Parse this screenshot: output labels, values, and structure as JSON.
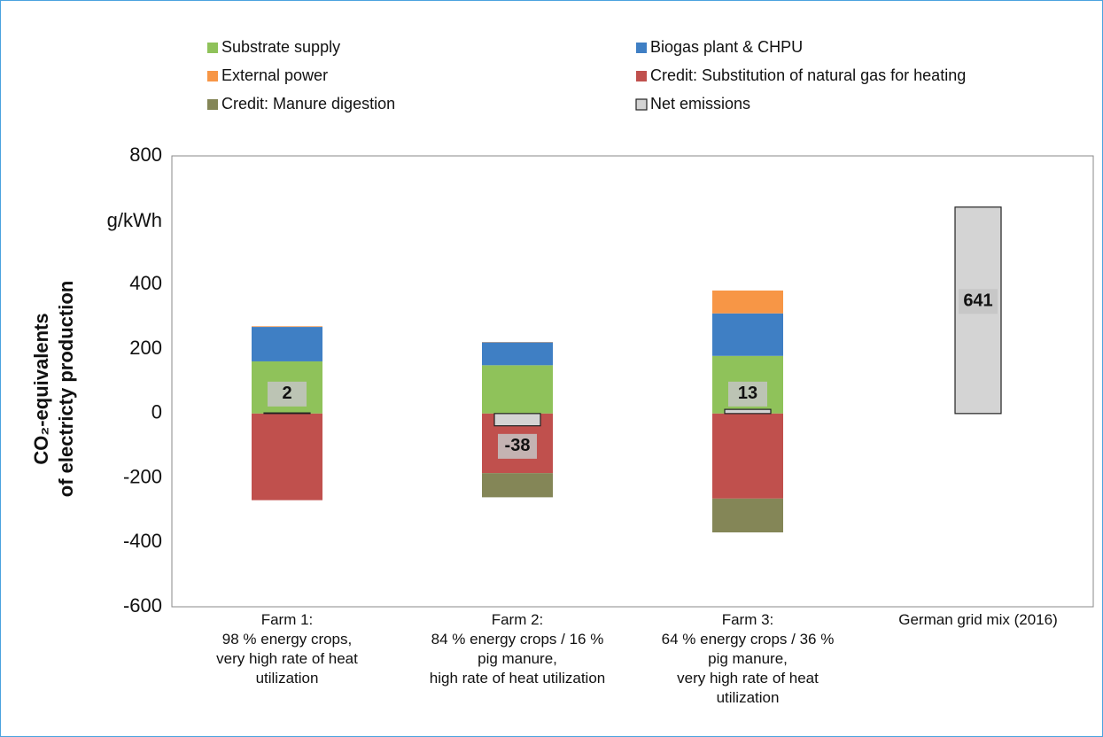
{
  "chart_data": {
    "type": "stacked-bar",
    "y_label": "CO₂-equivalents\nof electricty production",
    "unit": "g/kWh",
    "categories": [
      "Farm 1:\n98 % energy crops,\nvery high rate of heat\nutilization",
      "Farm 2:\n84 % energy crops / 16 %\npig manure,\nhigh rate of heat utilization",
      "Farm 3:\n64 % energy crops / 36 %\npig manure,\nvery high rate of heat\nutilization",
      "German grid mix (2016)"
    ],
    "series": [
      {
        "name": "Substrate supply",
        "color": "#8fc25a",
        "values": [
          162,
          150,
          179,
          null
        ]
      },
      {
        "name": "Biogas plant & CHPU",
        "color": "#3f7fc4",
        "values": [
          107,
          71,
          132,
          null
        ]
      },
      {
        "name": "External power",
        "color": "#f79646",
        "values": [
          2,
          1,
          71,
          null
        ]
      },
      {
        "name": "Credit: Substitution of natural gas for heating",
        "color": "#c0504d",
        "values": [
          -269,
          -185,
          -264,
          null
        ]
      },
      {
        "name": "Credit: Manure digestion",
        "color": "#848657",
        "values": [
          0,
          -75,
          -105,
          null
        ]
      }
    ],
    "net": {
      "name": "Net emissions",
      "color": "#d4d4d4",
      "values": [
        2,
        -38,
        13,
        641
      ]
    },
    "ylim": [
      -600,
      800
    ],
    "yticks": [
      800,
      400,
      200,
      0,
      -200,
      -400,
      -600
    ]
  }
}
